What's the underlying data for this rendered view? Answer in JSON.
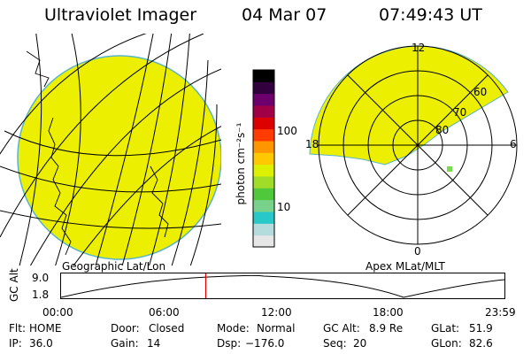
{
  "header": {
    "instrument": "Ultraviolet Imager",
    "date": "04 Mar 07",
    "time": "07:49:43 UT"
  },
  "panels": {
    "left_label": "Geographic Lat/Lon",
    "right_label": "Apex MLat/MLT"
  },
  "colorbar": {
    "unit_label": "photon cm⁻²s⁻¹",
    "ticks": [
      {
        "label": "100",
        "value": 100
      },
      {
        "label": "10",
        "value": 10
      }
    ],
    "colors": [
      "#e6e6e6",
      "#b4dcdc",
      "#28c8c8",
      "#78d28c",
      "#50c83c",
      "#a0dc28",
      "#dcf000",
      "#ffc800",
      "#ff9600",
      "#ff3c00",
      "#dc0000",
      "#a00046",
      "#6e006e",
      "#32003c",
      "#000000"
    ]
  },
  "polar": {
    "mlt_labels": [
      "12",
      "18",
      "6",
      "0"
    ],
    "lat_labels": [
      "60",
      "70",
      "80"
    ]
  },
  "altitude_plot": {
    "ylabel": "GC Alt",
    "yticks": [
      "9.0",
      "1.8"
    ],
    "xticks": [
      "00:00",
      "06:00",
      "12:00",
      "18:00",
      "23:59"
    ],
    "current_time_hours": 7.83
  },
  "footer": {
    "row1": {
      "flt_label": "Flt:",
      "flt_value": "HOME",
      "door_label": "Door:",
      "door_value": "Closed",
      "mode_label": "Mode:",
      "mode_value": "Normal",
      "gcalt_label": "GC Alt:",
      "gcalt_value": "8.9 Re",
      "glat_label": "GLat:",
      "glat_value": "51.9"
    },
    "row2": {
      "ip_label": "IP:",
      "ip_value": "36.0",
      "gain_label": "Gain:",
      "gain_value": "14",
      "dsp_label": "Dsp:",
      "dsp_value": "−176.0",
      "seq_label": "Seq:",
      "seq_value": "20",
      "glon_label": "GLon:",
      "glon_value": "82.6"
    }
  }
}
